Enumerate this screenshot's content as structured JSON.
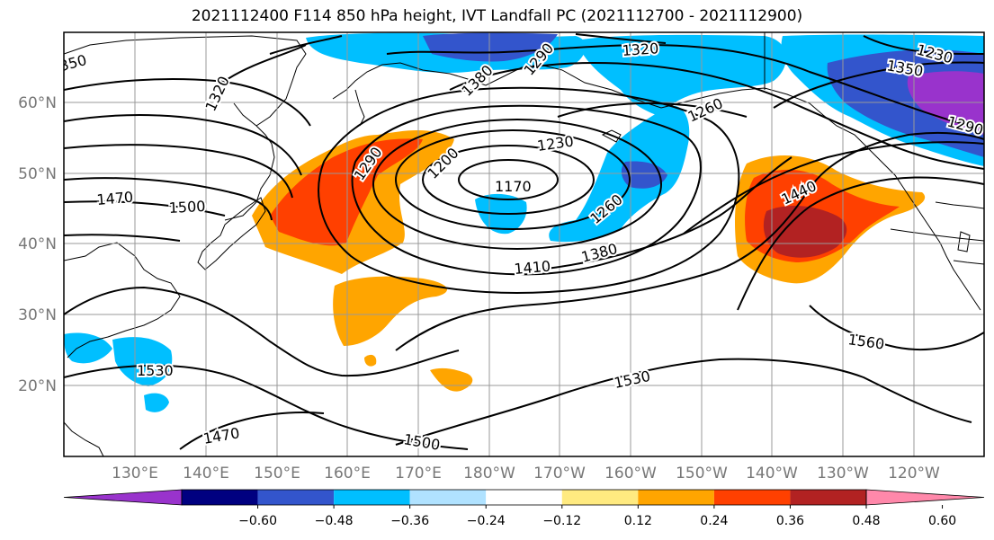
{
  "title": "2021112400 F114 850 hPa height, IVT Landfall PC (2021112700 - 2021112900)",
  "lat_labels": [
    "60°N",
    "50°N",
    "40°N",
    "30°N",
    "20°N"
  ],
  "lon_labels": [
    "130°E",
    "140°E",
    "150°E",
    "160°E",
    "170°E",
    "180°W",
    "170°W",
    "160°W",
    "150°W",
    "140°W",
    "130°W",
    "120°W"
  ],
  "colorbar": {
    "colors": [
      "#9933cc",
      "#000080",
      "#3355cc",
      "#00bfff",
      "#b0e2ff",
      "#ffffff",
      "#ffea80",
      "#ffa500",
      "#ff4000",
      "#b22222",
      "#ff88aa"
    ],
    "ticks": [
      "−0.60",
      "−0.48",
      "−0.36",
      "−0.24",
      "−0.12",
      "0.12",
      "0.24",
      "0.36",
      "0.48",
      "0.60"
    ]
  },
  "contour_labels": [
    {
      "text": "1530"
    },
    {
      "text": "1230"
    },
    {
      "text": "1320"
    },
    {
      "text": "1290"
    },
    {
      "text": "1260"
    },
    {
      "text": "1200"
    },
    {
      "text": "1170"
    },
    {
      "text": "1410"
    },
    {
      "text": "1380"
    },
    {
      "text": "1440"
    },
    {
      "text": "1470"
    },
    {
      "text": "1500"
    },
    {
      "text": "1560"
    },
    {
      "text": "1350"
    },
    {
      "text": "1230"
    },
    {
      "text": "1260"
    },
    {
      "text": "1290"
    },
    {
      "text": "1470"
    },
    {
      "text": "1500"
    },
    {
      "text": "1530"
    },
    {
      "text": "1320"
    },
    {
      "text": "1380"
    },
    {
      "text": "1290"
    },
    {
      "text": "1350"
    }
  ]
}
